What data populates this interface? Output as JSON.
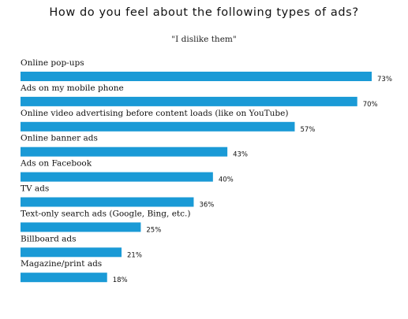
{
  "chart_data": {
    "type": "bar",
    "orientation": "horizontal",
    "title": "How do you feel about the following types of ads?",
    "subtitle": "\"I dislike them\"",
    "categories": [
      "Online pop-ups",
      "Ads on my mobile phone",
      "Online video advertising before content loads (like on YouTube)",
      "Online banner ads",
      "Ads on Facebook",
      "TV ads",
      "Text-only search ads (Google, Bing, etc.)",
      "Billboard ads",
      "Magazine/print ads"
    ],
    "values": [
      73,
      70,
      57,
      43,
      40,
      36,
      25,
      21,
      18
    ],
    "value_labels": [
      "73%",
      "70%",
      "57%",
      "43%",
      "40%",
      "36%",
      "25%",
      "21%",
      "18%"
    ],
    "unit": "%",
    "bar_color": "#1a9ad6",
    "grid": false,
    "legend": "none"
  }
}
